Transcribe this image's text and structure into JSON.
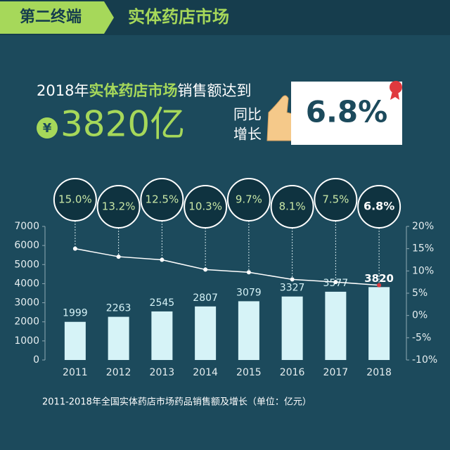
{
  "header": {
    "tag": "第二终端",
    "title": "实体药店市场"
  },
  "headline": {
    "year": "2018年",
    "market": "实体药店市场",
    "rest": "销售额达到",
    "currency": "¥",
    "amount": "3820亿",
    "yoy1": "同比",
    "yoy2": "增长",
    "growth": "6.8%"
  },
  "chart_data": {
    "type": "bar",
    "categories": [
      "2011",
      "2012",
      "2013",
      "2014",
      "2015",
      "2016",
      "2017",
      "2018"
    ],
    "series": [
      {
        "color": "#d6f3f7",
        "values": [
          1999,
          2263,
          2545,
          2807,
          3079,
          3327,
          3577,
          3820
        ]
      },
      {
        "type": "line",
        "axis": "y2",
        "color": "#ffffff",
        "values": [
          15.0,
          13.2,
          12.5,
          10.3,
          9.7,
          8.1,
          7.5,
          6.8
        ],
        "value_labels": [
          "15.0%",
          "13.2%",
          "12.5%",
          "10.3%",
          "9.7%",
          "8.1%",
          "7.5%",
          "6.8%"
        ]
      }
    ],
    "ylim": [
      0,
      7000
    ],
    "yticks": [
      0,
      1000,
      2000,
      3000,
      4000,
      5000,
      6000,
      7000
    ],
    "y2lim": [
      -10,
      20
    ],
    "y2ticks": [
      {
        "value": -10,
        "label": "-10%"
      },
      {
        "value": -5,
        "label": "-5%"
      },
      {
        "value": 0,
        "label": "0%"
      },
      {
        "value": 5,
        "label": "5%"
      },
      {
        "value": 10,
        "label": "10%"
      },
      {
        "value": 15,
        "label": "15%"
      },
      {
        "value": 20,
        "label": "20%"
      }
    ],
    "caption": "2011-2018年全国实体药店市场药品销售额及增长（单位：亿元）"
  }
}
